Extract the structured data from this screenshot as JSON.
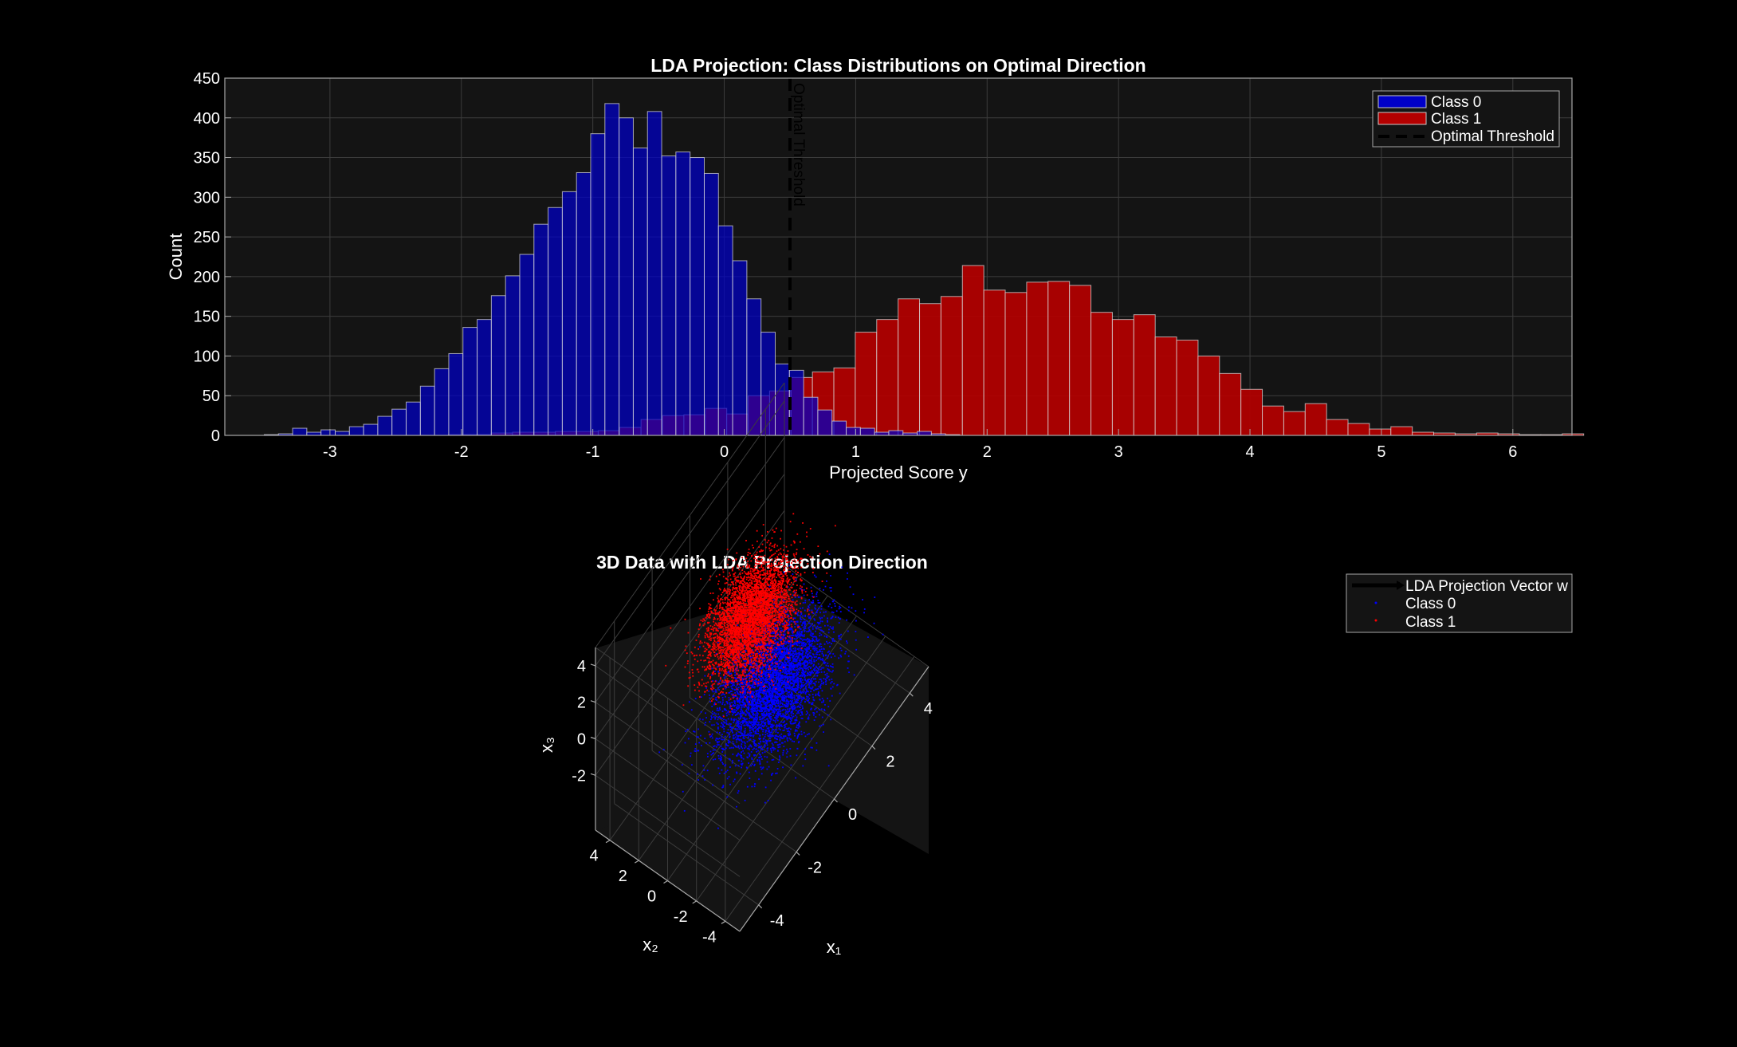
{
  "chart_data": [
    {
      "type": "histogram",
      "title": "LDA Projection: Class Distributions on Optimal Direction",
      "xlabel": "Projected Score y",
      "ylabel": "Count",
      "xlim": [
        -3.8,
        6.45
      ],
      "ylim": [
        0,
        450
      ],
      "xticks": [
        -3,
        -2,
        -1,
        0,
        1,
        2,
        3,
        4,
        5,
        6
      ],
      "xtick_labels": [
        "-3",
        "-2",
        "-1",
        "0",
        "1",
        "2",
        "3",
        "4",
        "5",
        "6"
      ],
      "yticks": [
        0,
        50,
        100,
        150,
        200,
        250,
        300,
        350,
        400,
        450
      ],
      "ytick_labels": [
        "0",
        "50",
        "100",
        "150",
        "200",
        "250",
        "300",
        "350",
        "400",
        "450"
      ],
      "grid": true,
      "legend_position": "top-right",
      "threshold": {
        "label": "Optimal Threshold",
        "x": 0.5
      },
      "colors": {
        "class0": "#0000c8",
        "class1": "#b40000",
        "background": "#141414",
        "figure": "#000000"
      },
      "series": [
        {
          "name": "Class 0",
          "bin_start": -3.5,
          "bin_width": 0.108,
          "values": [
            1,
            2,
            9,
            4,
            7,
            5,
            11,
            14,
            24,
            33,
            42,
            62,
            84,
            103,
            136,
            146,
            176,
            201,
            228,
            266,
            287,
            307,
            331,
            380,
            418,
            400,
            362,
            408,
            352,
            357,
            350,
            330,
            264,
            220,
            172,
            130,
            90,
            82,
            48,
            32,
            18,
            10,
            9,
            4,
            6,
            3,
            5,
            2,
            1
          ]
        },
        {
          "name": "Class 1",
          "bin_start": -2.1,
          "bin_width": 0.163,
          "values": [
            1,
            1,
            3,
            4,
            4,
            5,
            5,
            6,
            10,
            20,
            25,
            26,
            34,
            27,
            50,
            56,
            73,
            80,
            85,
            130,
            146,
            172,
            166,
            175,
            214,
            183,
            180,
            193,
            194,
            189,
            155,
            146,
            152,
            124,
            120,
            100,
            78,
            58,
            37,
            30,
            40,
            20,
            15,
            8,
            11,
            4,
            3,
            2,
            3,
            2,
            1,
            1,
            2
          ]
        }
      ]
    },
    {
      "type": "scatter3d",
      "title": "3D Data with LDA Projection Direction",
      "xlabel": "x₁",
      "ylabel": "x₂",
      "zlabel": "x₃",
      "xlim": [
        -5,
        5
      ],
      "ylim": [
        -5,
        5
      ],
      "zlim": [
        -5,
        5
      ],
      "xticks": [
        -4,
        -2,
        0,
        2,
        4
      ],
      "xtick_labels": [
        "-4",
        "-2",
        "0",
        "2",
        "4"
      ],
      "yticks": [
        -4,
        -2,
        0,
        2,
        4
      ],
      "ytick_labels": [
        "-4",
        "-2",
        "0",
        "2",
        "4"
      ],
      "zticks": [
        -2,
        0,
        2,
        4
      ],
      "ztick_labels": [
        "-2",
        "0",
        "2",
        "4"
      ],
      "grid": true,
      "legend_position": "top-right",
      "legend": [
        "LDA Projection Vector w",
        "Class 0",
        "Class 1"
      ],
      "colors": {
        "vector": "#000000",
        "class0": "#0000ff",
        "class1": "#ff0000"
      },
      "series": [
        {
          "name": "Class 0",
          "count": 5000,
          "mean": [
            0.4,
            -0.2,
            -2.0
          ],
          "std": [
            1.2,
            1.2,
            0.9
          ]
        },
        {
          "name": "Class 1",
          "count": 5000,
          "mean": [
            -0.3,
            0.4,
            2.3
          ],
          "std": [
            0.9,
            0.9,
            0.9
          ]
        }
      ]
    }
  ]
}
